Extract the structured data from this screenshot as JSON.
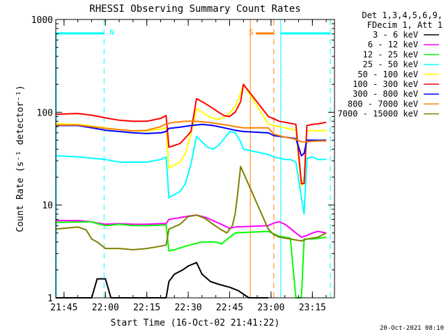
{
  "chart_data": {
    "type": "line",
    "title": "RHESSI Observing Summary Count Rates",
    "xlabel": "Start Time (16-Oct-02 21:41:22)",
    "ylabel": "Count Rate (s⁻¹ detector⁻¹)",
    "yscale": "log",
    "ylim": [
      1,
      1000
    ],
    "xlim_minutes": [
      -3,
      98
    ],
    "x_ticks": [
      {
        "label": "21:45",
        "minutes": 0
      },
      {
        "label": "22:00",
        "minutes": 15
      },
      {
        "label": "22:15",
        "minutes": 30
      },
      {
        "label": "22:30",
        "minutes": 45
      },
      {
        "label": "22:45",
        "minutes": 60
      },
      {
        "label": "23:00",
        "minutes": 75
      },
      {
        "label": "23:15",
        "minutes": 90
      }
    ],
    "y_ticks": [
      {
        "label": "1",
        "value": 1
      },
      {
        "label": "10",
        "value": 10
      },
      {
        "label": "100",
        "value": 100
      },
      {
        "label": "1000",
        "value": 1000
      }
    ],
    "legend_header": [
      "Det 1,3,4,5,6,9,",
      "FDecim 1, Att 1"
    ],
    "legend_placement": "right",
    "series": [
      {
        "name": "3 - 6 keV",
        "color": "#000000",
        "points": [
          [
            -3,
            1
          ],
          [
            10,
            1
          ],
          [
            12,
            1.6
          ],
          [
            15,
            1.6
          ],
          [
            17,
            1
          ],
          [
            37,
            1
          ],
          [
            38,
            1.5
          ],
          [
            40,
            1.8
          ],
          [
            43,
            2.0
          ],
          [
            45,
            2.2
          ],
          [
            48,
            2.4
          ],
          [
            50,
            1.8
          ],
          [
            53,
            1.5
          ],
          [
            56,
            1.4
          ],
          [
            60,
            1.3
          ],
          [
            63,
            1.2
          ],
          [
            67,
            1
          ],
          [
            72,
            1
          ],
          [
            74,
            1
          ]
        ]
      },
      {
        "name": "6 - 12 keV",
        "color": "#ff00ff",
        "points": [
          [
            -3,
            6.8
          ],
          [
            5,
            6.8
          ],
          [
            10,
            6.6
          ],
          [
            12,
            6.4
          ],
          [
            15,
            6.2
          ],
          [
            20,
            6.3
          ],
          [
            25,
            6.2
          ],
          [
            30,
            6.2
          ],
          [
            35,
            6.3
          ],
          [
            37,
            6.3
          ],
          [
            38,
            7.0
          ],
          [
            42,
            7.3
          ],
          [
            45,
            7.6
          ],
          [
            48,
            7.8
          ],
          [
            51,
            7.4
          ],
          [
            54,
            6.8
          ],
          [
            57,
            6.2
          ],
          [
            60,
            5.6
          ],
          [
            62,
            5.8
          ],
          [
            74,
            6.0
          ],
          [
            76,
            6.4
          ],
          [
            78,
            6.6
          ],
          [
            80,
            6.2
          ],
          [
            82,
            5.6
          ],
          [
            84,
            5.0
          ],
          [
            86,
            4.5
          ],
          [
            88,
            4.7
          ],
          [
            90,
            5.0
          ],
          [
            92,
            5.2
          ],
          [
            95,
            5.0
          ]
        ]
      },
      {
        "name": "12 - 25 keV",
        "color": "#00ff00",
        "points": [
          [
            -3,
            6.5
          ],
          [
            10,
            6.6
          ],
          [
            12,
            6.3
          ],
          [
            15,
            6.0
          ],
          [
            20,
            6.2
          ],
          [
            25,
            6.0
          ],
          [
            30,
            6.0
          ],
          [
            37,
            6.1
          ],
          [
            38,
            3.2
          ],
          [
            40,
            3.3
          ],
          [
            44,
            3.6
          ],
          [
            47,
            3.8
          ],
          [
            50,
            4.0
          ],
          [
            55,
            4.0
          ],
          [
            57,
            3.8
          ],
          [
            60,
            4.5
          ],
          [
            62,
            5.0
          ],
          [
            74,
            5.2
          ],
          [
            76,
            4.9
          ],
          [
            78,
            4.6
          ],
          [
            80,
            4.5
          ],
          [
            82,
            4.4
          ],
          [
            84,
            1.0
          ],
          [
            86,
            1.0
          ],
          [
            87,
            4.3
          ],
          [
            90,
            4.3
          ],
          [
            95,
            4.5
          ]
        ]
      },
      {
        "name": "25 - 50 keV",
        "color": "#00ffff",
        "points": [
          [
            -3,
            34
          ],
          [
            5,
            33
          ],
          [
            10,
            32
          ],
          [
            15,
            31
          ],
          [
            20,
            29
          ],
          [
            25,
            29
          ],
          [
            30,
            29
          ],
          [
            35,
            31
          ],
          [
            37,
            33
          ],
          [
            38,
            12
          ],
          [
            40,
            13
          ],
          [
            42,
            14
          ],
          [
            44,
            17
          ],
          [
            46,
            28
          ],
          [
            48,
            55
          ],
          [
            50,
            48
          ],
          [
            52,
            42
          ],
          [
            54,
            40
          ],
          [
            56,
            44
          ],
          [
            58,
            52
          ],
          [
            60,
            62
          ],
          [
            62,
            60
          ],
          [
            64,
            48
          ],
          [
            65,
            40
          ],
          [
            74,
            35
          ],
          [
            76,
            33
          ],
          [
            78,
            32
          ],
          [
            80,
            31
          ],
          [
            82,
            31
          ],
          [
            84,
            29
          ],
          [
            86,
            12
          ],
          [
            87,
            8
          ],
          [
            88,
            32
          ],
          [
            90,
            33
          ],
          [
            92,
            31
          ],
          [
            95,
            31
          ]
        ]
      },
      {
        "name": "50 - 100 keV",
        "color": "#ffff00",
        "points": [
          [
            -3,
            75
          ],
          [
            5,
            74
          ],
          [
            10,
            71
          ],
          [
            15,
            68
          ],
          [
            20,
            65
          ],
          [
            25,
            63
          ],
          [
            30,
            63
          ],
          [
            35,
            66
          ],
          [
            37,
            68
          ],
          [
            38,
            25
          ],
          [
            40,
            27
          ],
          [
            42,
            29
          ],
          [
            44,
            36
          ],
          [
            46,
            58
          ],
          [
            48,
            110
          ],
          [
            50,
            100
          ],
          [
            52,
            92
          ],
          [
            54,
            86
          ],
          [
            56,
            84
          ],
          [
            58,
            88
          ],
          [
            60,
            98
          ],
          [
            62,
            115
          ],
          [
            64,
            160
          ],
          [
            65,
            200
          ],
          [
            74,
            75
          ],
          [
            76,
            72
          ],
          [
            78,
            70
          ],
          [
            80,
            68
          ],
          [
            82,
            66
          ],
          [
            84,
            64
          ],
          [
            86,
            16
          ],
          [
            87,
            19
          ],
          [
            88,
            62
          ],
          [
            90,
            64
          ],
          [
            92,
            63
          ],
          [
            95,
            64
          ]
        ]
      },
      {
        "name": "100 - 300 keV",
        "color": "#ff0000",
        "points": [
          [
            -3,
            95
          ],
          [
            5,
            97
          ],
          [
            10,
            93
          ],
          [
            15,
            87
          ],
          [
            20,
            82
          ],
          [
            25,
            80
          ],
          [
            30,
            80
          ],
          [
            35,
            86
          ],
          [
            37,
            92
          ],
          [
            38,
            42
          ],
          [
            40,
            44
          ],
          [
            42,
            46
          ],
          [
            44,
            53
          ],
          [
            46,
            62
          ],
          [
            48,
            140
          ],
          [
            50,
            130
          ],
          [
            52,
            120
          ],
          [
            54,
            110
          ],
          [
            56,
            100
          ],
          [
            58,
            92
          ],
          [
            60,
            90
          ],
          [
            62,
            100
          ],
          [
            64,
            130
          ],
          [
            65,
            200
          ],
          [
            74,
            90
          ],
          [
            76,
            85
          ],
          [
            78,
            80
          ],
          [
            80,
            78
          ],
          [
            82,
            76
          ],
          [
            84,
            74
          ],
          [
            86,
            17
          ],
          [
            87,
            17
          ],
          [
            88,
            72
          ],
          [
            90,
            74
          ],
          [
            92,
            75
          ],
          [
            95,
            78
          ]
        ]
      },
      {
        "name": "300 - 800 keV",
        "color": "#0000ff",
        "points": [
          [
            -3,
            72
          ],
          [
            5,
            72
          ],
          [
            10,
            68
          ],
          [
            15,
            64
          ],
          [
            20,
            62
          ],
          [
            25,
            60
          ],
          [
            30,
            59
          ],
          [
            35,
            60
          ],
          [
            37,
            62
          ],
          [
            38,
            67
          ],
          [
            42,
            69
          ],
          [
            46,
            72
          ],
          [
            50,
            74
          ],
          [
            54,
            72
          ],
          [
            58,
            68
          ],
          [
            62,
            64
          ],
          [
            65,
            62
          ],
          [
            74,
            60
          ],
          [
            76,
            56
          ],
          [
            80,
            54
          ],
          [
            84,
            52
          ],
          [
            86,
            34
          ],
          [
            87,
            36
          ],
          [
            88,
            50
          ],
          [
            92,
            50
          ],
          [
            95,
            50
          ]
        ]
      },
      {
        "name": "800 - 7000 keV",
        "color": "#ff8000",
        "points": [
          [
            -3,
            73
          ],
          [
            5,
            73
          ],
          [
            10,
            70
          ],
          [
            15,
            67
          ],
          [
            20,
            65
          ],
          [
            25,
            63
          ],
          [
            30,
            64
          ],
          [
            35,
            70
          ],
          [
            37,
            75
          ],
          [
            40,
            78
          ],
          [
            44,
            80
          ],
          [
            48,
            80
          ],
          [
            52,
            78
          ],
          [
            56,
            75
          ],
          [
            60,
            72
          ],
          [
            62,
            70
          ],
          [
            65,
            68
          ],
          [
            74,
            68
          ],
          [
            76,
            58
          ],
          [
            80,
            54
          ],
          [
            84,
            51
          ],
          [
            86,
            48
          ],
          [
            88,
            48
          ],
          [
            92,
            49
          ],
          [
            95,
            49
          ]
        ]
      },
      {
        "name": "7000 - 15000 keV",
        "color": "#808000",
        "points": [
          [
            -3,
            5.5
          ],
          [
            5,
            5.8
          ],
          [
            8,
            5.4
          ],
          [
            10,
            4.3
          ],
          [
            12,
            4.0
          ],
          [
            15,
            3.4
          ],
          [
            20,
            3.4
          ],
          [
            25,
            3.3
          ],
          [
            30,
            3.4
          ],
          [
            35,
            3.6
          ],
          [
            37,
            3.7
          ],
          [
            38,
            5.5
          ],
          [
            42,
            6.2
          ],
          [
            45,
            7.5
          ],
          [
            48,
            7.8
          ],
          [
            51,
            7.2
          ],
          [
            54,
            6.2
          ],
          [
            57,
            5.4
          ],
          [
            59,
            5.0
          ],
          [
            61,
            6.0
          ],
          [
            62,
            8
          ],
          [
            63,
            14
          ],
          [
            64,
            26
          ],
          [
            74,
            5.5
          ],
          [
            76,
            4.8
          ],
          [
            78,
            4.5
          ],
          [
            80,
            4.4
          ],
          [
            82,
            4.3
          ],
          [
            84,
            4.2
          ],
          [
            86,
            4.1
          ],
          [
            88,
            4.3
          ],
          [
            90,
            4.4
          ],
          [
            92,
            4.5
          ],
          [
            95,
            5.0
          ]
        ]
      }
    ],
    "annotations": [
      {
        "label": "N",
        "color": "#00ffff",
        "bar_minutes": [
          -3,
          14.5
        ],
        "dashed_minutes": [
          14.5
        ]
      },
      {
        "label": "S",
        "color": "#ff8000",
        "bar_minutes": [
          69.5,
          76
        ],
        "solid_minutes": [
          67.5
        ],
        "dashed_minutes": [
          76
        ]
      },
      {
        "label": "",
        "color": "#00ffff",
        "bar_minutes": [
          78.5,
          96.5
        ],
        "solid_minutes": [
          78.5
        ],
        "dashed_minutes": [
          96.5
        ]
      }
    ]
  },
  "footer_date": "20-Oct-2021 08:10"
}
